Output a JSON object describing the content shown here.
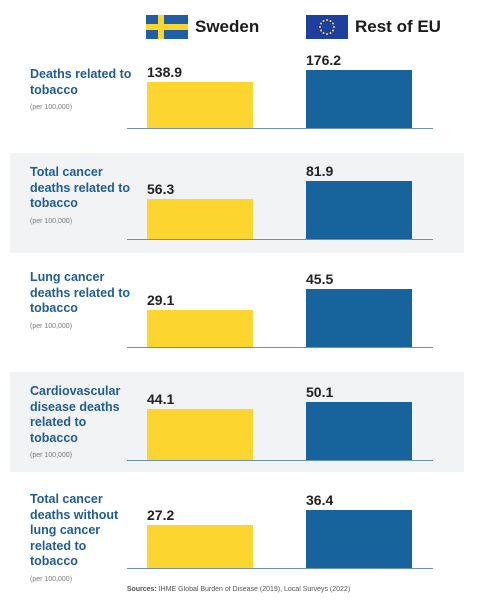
{
  "legend": [
    {
      "name": "Sweden",
      "color": "#fcd62f"
    },
    {
      "name": "Rest of EU",
      "color": "#17639c"
    }
  ],
  "chart_data": [
    {
      "type": "bar",
      "title": "Deaths related to tobacco",
      "subtitle": "(per 100,000)",
      "values": [
        138.9,
        176.2
      ],
      "background": "#ffffff"
    },
    {
      "type": "bar",
      "title": "Total cancer deaths related to tobacco",
      "subtitle": "(per 100,000)",
      "values": [
        56.3,
        81.9
      ],
      "background": "#f2f3f5"
    },
    {
      "type": "bar",
      "title": "Lung cancer deaths related to tobacco",
      "subtitle": "(per 100,000)",
      "values": [
        29.1,
        45.5
      ],
      "background": "#ffffff"
    },
    {
      "type": "bar",
      "title": "Cardiovascular disease deaths related to tobacco",
      "subtitle": "(per 100,000)",
      "values": [
        44.1,
        50.1
      ],
      "background": "#f2f3f5"
    },
    {
      "type": "bar",
      "title": "Total cancer deaths without lung cancer related to tobacco",
      "subtitle": "(per 100,000)",
      "values": [
        27.2,
        36.4
      ],
      "background": "#ffffff"
    }
  ],
  "source_label": "Sources:",
  "source": "IHME Global Burden of Disease (2019), Local Surveys (2022)"
}
